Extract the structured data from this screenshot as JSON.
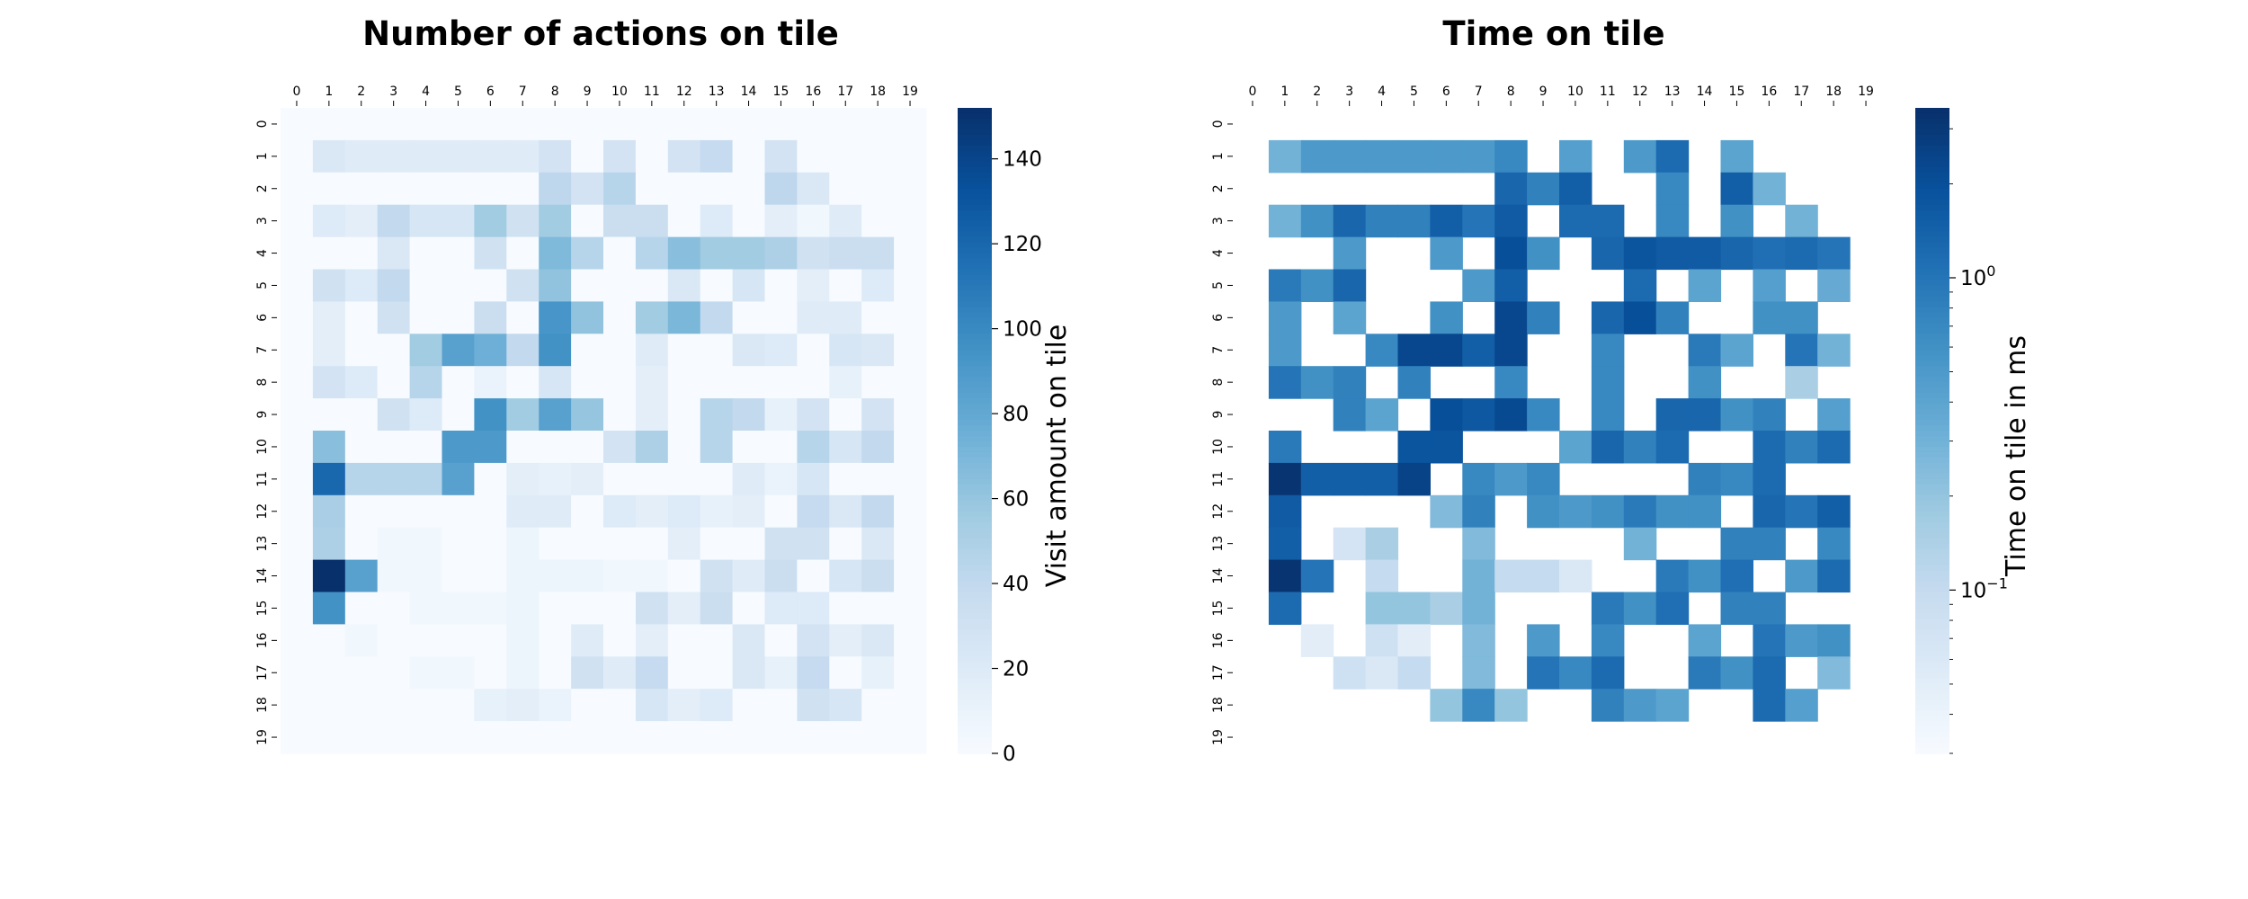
{
  "chart_data": [
    {
      "type": "heatmap",
      "title": "Number of actions on tile",
      "x_ticks": [
        "0",
        "1",
        "2",
        "3",
        "4",
        "5",
        "6",
        "7",
        "8",
        "9",
        "10",
        "11",
        "12",
        "13",
        "14",
        "15",
        "16",
        "17",
        "18",
        "19"
      ],
      "y_ticks": [
        "0",
        "1",
        "2",
        "3",
        "4",
        "5",
        "6",
        "7",
        "8",
        "9",
        "10",
        "11",
        "12",
        "13",
        "14",
        "15",
        "16",
        "17",
        "18",
        "19"
      ],
      "colorbar": {
        "label": "Visit amount on tile",
        "scale": "linear",
        "min": 0,
        "max": 152,
        "ticks": [
          0,
          20,
          40,
          60,
          80,
          100,
          120,
          140
        ],
        "tick_labels": [
          "0",
          "20",
          "40",
          "60",
          "80",
          "100",
          "120",
          "140"
        ],
        "colormap": "Blues"
      },
      "values": [
        [
          0,
          0,
          0,
          0,
          0,
          0,
          0,
          0,
          0,
          0,
          0,
          0,
          0,
          0,
          0,
          0,
          0,
          0,
          0,
          0
        ],
        [
          0,
          22,
          18,
          18,
          18,
          18,
          18,
          18,
          28,
          0,
          28,
          0,
          28,
          38,
          0,
          28,
          0,
          0,
          0,
          0
        ],
        [
          0,
          0,
          0,
          0,
          0,
          0,
          0,
          0,
          42,
          28,
          45,
          0,
          0,
          0,
          0,
          42,
          22,
          0,
          0,
          0
        ],
        [
          0,
          20,
          15,
          40,
          25,
          25,
          55,
          30,
          55,
          0,
          35,
          35,
          0,
          20,
          0,
          15,
          5,
          18,
          0,
          0
        ],
        [
          0,
          0,
          0,
          22,
          0,
          0,
          30,
          0,
          68,
          45,
          0,
          45,
          65,
          55,
          55,
          50,
          30,
          35,
          35,
          0
        ],
        [
          0,
          30,
          20,
          40,
          0,
          0,
          0,
          30,
          62,
          0,
          0,
          0,
          22,
          0,
          25,
          0,
          15,
          0,
          20,
          0
        ],
        [
          0,
          15,
          0,
          30,
          0,
          0,
          35,
          0,
          92,
          62,
          0,
          55,
          70,
          40,
          0,
          0,
          18,
          18,
          0,
          0
        ],
        [
          0,
          15,
          0,
          0,
          55,
          85,
          75,
          40,
          95,
          0,
          0,
          18,
          0,
          0,
          22,
          20,
          0,
          25,
          22,
          0
        ],
        [
          0,
          28,
          20,
          0,
          45,
          0,
          10,
          0,
          25,
          0,
          0,
          15,
          0,
          0,
          0,
          0,
          0,
          12,
          0,
          0
        ],
        [
          0,
          0,
          0,
          30,
          20,
          0,
          95,
          55,
          85,
          60,
          0,
          15,
          0,
          45,
          40,
          12,
          28,
          0,
          28,
          0
        ],
        [
          0,
          65,
          0,
          0,
          0,
          90,
          90,
          0,
          0,
          0,
          28,
          50,
          0,
          45,
          0,
          0,
          45,
          25,
          40,
          0
        ],
        [
          0,
          120,
          45,
          45,
          45,
          85,
          0,
          15,
          12,
          15,
          0,
          0,
          0,
          0,
          18,
          10,
          25,
          0,
          0,
          0
        ],
        [
          0,
          52,
          0,
          0,
          0,
          0,
          0,
          18,
          18,
          0,
          20,
          15,
          20,
          12,
          15,
          0,
          38,
          22,
          40,
          0
        ],
        [
          0,
          50,
          0,
          5,
          5,
          0,
          0,
          8,
          0,
          0,
          0,
          0,
          15,
          0,
          0,
          30,
          30,
          0,
          22,
          0
        ],
        [
          0,
          152,
          85,
          5,
          5,
          0,
          0,
          8,
          8,
          8,
          5,
          5,
          0,
          30,
          18,
          35,
          0,
          25,
          35,
          0
        ],
        [
          0,
          95,
          0,
          0,
          5,
          5,
          5,
          8,
          0,
          0,
          0,
          30,
          15,
          35,
          0,
          20,
          20,
          0,
          0,
          0
        ],
        [
          0,
          0,
          5,
          0,
          0,
          0,
          0,
          8,
          0,
          18,
          0,
          15,
          0,
          0,
          22,
          0,
          28,
          15,
          22,
          0
        ],
        [
          0,
          0,
          0,
          0,
          5,
          5,
          0,
          8,
          0,
          30,
          18,
          38,
          0,
          0,
          22,
          12,
          38,
          0,
          12,
          0
        ],
        [
          0,
          0,
          0,
          0,
          0,
          0,
          12,
          15,
          10,
          0,
          0,
          25,
          15,
          20,
          0,
          0,
          30,
          25,
          0,
          0
        ],
        [
          0,
          0,
          0,
          0,
          0,
          0,
          0,
          0,
          0,
          0,
          0,
          0,
          0,
          0,
          0,
          0,
          0,
          0,
          0,
          0
        ]
      ]
    },
    {
      "type": "heatmap",
      "title": "Time on tile",
      "x_ticks": [
        "0",
        "1",
        "2",
        "3",
        "4",
        "5",
        "6",
        "7",
        "8",
        "9",
        "10",
        "11",
        "12",
        "13",
        "14",
        "15",
        "16",
        "17",
        "18",
        "19"
      ],
      "y_ticks": [
        "0",
        "1",
        "2",
        "3",
        "4",
        "5",
        "6",
        "7",
        "8",
        "9",
        "10",
        "11",
        "12",
        "13",
        "14",
        "15",
        "16",
        "17",
        "18",
        "19"
      ],
      "colorbar": {
        "label": "Time on tile in ms",
        "scale": "log",
        "min": 0.03,
        "max": 3.5,
        "major_ticks": [
          0.1,
          1.0
        ],
        "tick_labels": [
          "10^-1",
          "10^0"
        ],
        "colormap": "Blues"
      },
      "values": [
        [
          null,
          null,
          null,
          null,
          null,
          null,
          null,
          null,
          null,
          null,
          null,
          null,
          null,
          null,
          null,
          null,
          null,
          null,
          null,
          null
        ],
        [
          null,
          0.3,
          0.5,
          0.5,
          0.5,
          0.5,
          0.5,
          0.5,
          0.7,
          null,
          0.45,
          null,
          0.5,
          1.2,
          null,
          0.4,
          null,
          null,
          null,
          null
        ],
        [
          null,
          null,
          null,
          null,
          null,
          null,
          null,
          null,
          1.3,
          0.8,
          1.5,
          null,
          null,
          0.7,
          null,
          1.5,
          0.3,
          null,
          null,
          null
        ],
        [
          null,
          0.3,
          0.6,
          1.3,
          0.8,
          0.8,
          1.5,
          1.0,
          1.6,
          null,
          1.2,
          1.2,
          null,
          0.7,
          null,
          0.6,
          null,
          0.3,
          null,
          null
        ],
        [
          null,
          null,
          null,
          0.5,
          null,
          null,
          0.5,
          null,
          2.0,
          0.6,
          null,
          1.3,
          1.8,
          1.6,
          1.6,
          1.3,
          1.1,
          1.2,
          1.0,
          null
        ],
        [
          null,
          0.9,
          0.6,
          1.3,
          null,
          null,
          null,
          0.5,
          1.5,
          null,
          null,
          null,
          1.2,
          null,
          0.4,
          null,
          0.45,
          null,
          0.35,
          null
        ],
        [
          null,
          0.5,
          null,
          0.4,
          null,
          null,
          0.6,
          null,
          2.3,
          0.8,
          null,
          1.3,
          2.0,
          0.8,
          null,
          null,
          0.6,
          0.6,
          null,
          null
        ],
        [
          null,
          0.5,
          null,
          null,
          0.7,
          2.3,
          2.3,
          1.5,
          2.3,
          null,
          null,
          0.7,
          null,
          null,
          0.9,
          0.4,
          null,
          1.0,
          0.3,
          null
        ],
        [
          null,
          1.0,
          0.6,
          0.8,
          null,
          0.8,
          null,
          null,
          0.7,
          null,
          null,
          0.7,
          null,
          null,
          0.6,
          null,
          null,
          0.15,
          null,
          null
        ],
        [
          null,
          null,
          null,
          0.8,
          0.4,
          null,
          2.0,
          1.7,
          2.2,
          0.7,
          null,
          0.7,
          null,
          1.3,
          1.3,
          0.6,
          0.8,
          null,
          0.45,
          null
        ],
        [
          null,
          0.9,
          null,
          null,
          null,
          1.8,
          1.8,
          null,
          null,
          null,
          0.4,
          1.3,
          0.8,
          1.2,
          null,
          null,
          1.2,
          0.8,
          1.2,
          null
        ],
        [
          null,
          3.2,
          1.5,
          1.5,
          1.5,
          2.5,
          null,
          0.7,
          0.5,
          0.7,
          null,
          null,
          null,
          null,
          0.8,
          0.7,
          1.2,
          null,
          null,
          null
        ],
        [
          null,
          1.6,
          null,
          null,
          null,
          null,
          0.25,
          0.8,
          null,
          0.6,
          0.5,
          0.6,
          0.9,
          0.6,
          0.6,
          null,
          1.3,
          1.0,
          1.5,
          null
        ],
        [
          null,
          1.5,
          null,
          0.07,
          0.15,
          null,
          null,
          0.25,
          null,
          null,
          null,
          null,
          0.3,
          null,
          null,
          0.8,
          0.8,
          null,
          0.7,
          null
        ],
        [
          null,
          3.2,
          1.0,
          null,
          0.1,
          null,
          null,
          0.3,
          0.1,
          0.1,
          0.06,
          null,
          null,
          0.9,
          0.6,
          1.1,
          null,
          0.5,
          1.2,
          null
        ],
        [
          null,
          1.2,
          null,
          null,
          0.2,
          0.2,
          0.15,
          0.3,
          null,
          null,
          null,
          0.9,
          0.6,
          1.1,
          null,
          0.8,
          0.8,
          null,
          null,
          null
        ],
        [
          null,
          null,
          0.05,
          null,
          0.08,
          0.05,
          null,
          0.25,
          null,
          0.5,
          null,
          0.7,
          null,
          null,
          0.4,
          null,
          1.0,
          0.5,
          0.6,
          null
        ],
        [
          null,
          null,
          null,
          0.08,
          0.06,
          0.1,
          null,
          0.25,
          null,
          1.0,
          0.7,
          1.2,
          null,
          null,
          0.9,
          0.6,
          1.2,
          null,
          0.25,
          null
        ],
        [
          null,
          null,
          null,
          null,
          null,
          null,
          0.2,
          0.7,
          0.2,
          null,
          null,
          0.8,
          0.5,
          0.4,
          null,
          null,
          1.2,
          0.45,
          null,
          null
        ],
        [
          null,
          null,
          null,
          null,
          null,
          null,
          null,
          null,
          null,
          null,
          null,
          null,
          null,
          null,
          null,
          null,
          null,
          null,
          null,
          null
        ]
      ]
    }
  ]
}
